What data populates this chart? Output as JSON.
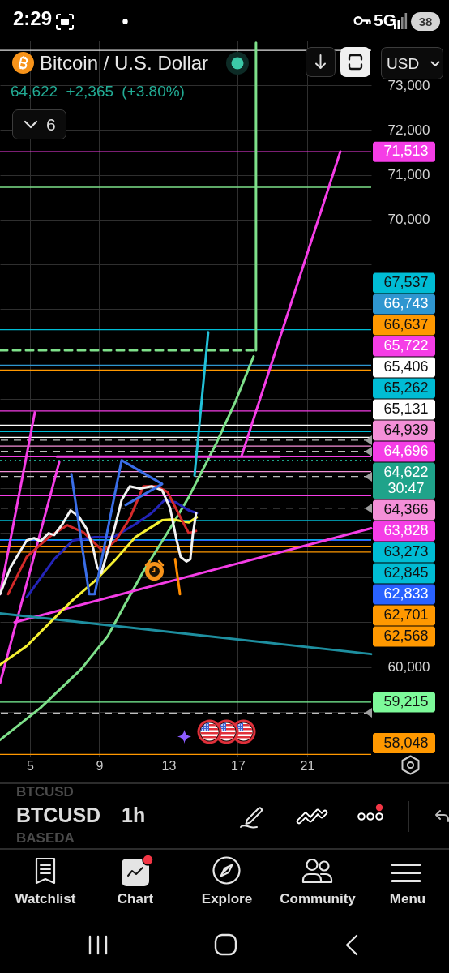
{
  "chart_data": {
    "type": "line",
    "title": "Bitcoin / U.S. Dollar",
    "subtitle": "64,622 +2,365 (+3.80%)",
    "xlim": [
      3.27,
      24.7
    ],
    "xticks": [
      5,
      9,
      13,
      17,
      21
    ],
    "ylim": [
      58000,
      74000
    ],
    "yticks": [
      {
        "value": 58000,
        "label": null
      },
      {
        "value": 59000,
        "label": null
      },
      {
        "value": 60000,
        "label": "60,000"
      },
      {
        "value": 61000,
        "label": null
      },
      {
        "value": 62000,
        "label": null
      },
      {
        "value": 63000,
        "label": null
      },
      {
        "value": 64000,
        "label": null
      },
      {
        "value": 65000,
        "label": null
      },
      {
        "value": 66000,
        "label": null
      },
      {
        "value": 67000,
        "label": null
      },
      {
        "value": 68000,
        "label": null
      },
      {
        "value": 69000,
        "label": null
      },
      {
        "value": 70000,
        "label": "70,000"
      },
      {
        "value": 71000,
        "label": "71,000"
      },
      {
        "value": 72000,
        "label": "72,000"
      },
      {
        "value": 73000,
        "label": "73,000"
      },
      {
        "value": 74000,
        "label": null
      }
    ],
    "grid": true,
    "legend": "right",
    "series": [
      {
        "color": "#7ee08a",
        "x": [
          3.27,
          5.61,
          7.95,
          9.49,
          10.43,
          11.55,
          13.24,
          14.17,
          15.76,
          16.84,
          17.91
        ],
        "values": [
          58370,
          59090,
          59950,
          60690,
          61360,
          62140,
          63190,
          63800,
          65000,
          65910,
          66940
        ]
      },
      {
        "color": "#7ee08a",
        "x": [
          18.05,
          18.05
        ],
        "values": [
          67080,
          73950
        ]
      },
      {
        "color": "#7ee08a",
        "line_style": "dashed",
        "x": [
          3.27,
          18.15
        ],
        "values": [
          67080,
          67080
        ]
      },
      {
        "color": "#f53de6",
        "x": [
          6.55,
          19.41
        ],
        "values": [
          64700,
          64700
        ]
      },
      {
        "color": "#f53de6",
        "x": [
          17.21,
          22.92
        ],
        "values": [
          64710,
          71520
        ]
      },
      {
        "color": "#f53de6",
        "x": [
          4.11,
          24.7
        ],
        "values": [
          61000,
          63100
        ]
      },
      {
        "color": "#f53de6",
        "x": [
          3.27,
          5.28
        ],
        "values": [
          61630,
          65690
        ]
      },
      {
        "color": "#f53de6",
        "x": [
          3.27,
          6.69
        ],
        "values": [
          59640,
          64580
        ]
      },
      {
        "color": "#1e8fa0",
        "x": [
          3.27,
          24.7
        ],
        "values": [
          61200,
          60290
        ]
      },
      {
        "color": "#22c0d8",
        "x": [
          14.5,
          15.29
        ],
        "values": [
          64280,
          67480
        ]
      },
      {
        "color": "#f5f032",
        "x": [
          3.27,
          4.81,
          6.87,
          7.48,
          8.74,
          9.96,
          11.08,
          12.02,
          12.63,
          13.24,
          14.17,
          14.64
        ],
        "values": [
          60050,
          60470,
          61270,
          61500,
          61920,
          62410,
          62900,
          63130,
          63280,
          63300,
          63230,
          63350
        ]
      },
      {
        "color": "#2424b8",
        "x": [
          4.81,
          6.4,
          7.48,
          8.74,
          9.82,
          11.08,
          12.02,
          12.77,
          13.42,
          14.17,
          14.64
        ],
        "values": [
          61560,
          62410,
          62830,
          62900,
          62900,
          63190,
          63440,
          63730,
          63680,
          63500,
          63440
        ]
      },
      {
        "color": "#d42a2a",
        "x": [
          3.74,
          4.81,
          6.08,
          7.15,
          8.09,
          9.21,
          9.96,
          10.76,
          11.55,
          12.3,
          12.95,
          13.56,
          14.17,
          14.59
        ],
        "values": [
          61630,
          62460,
          62900,
          63170,
          63010,
          62590,
          62830,
          63320,
          64040,
          64040,
          63910,
          63440,
          62990,
          63040
        ]
      },
      {
        "color": "#f2f2f2",
        "x": [
          3.27,
          3.88,
          4.81,
          5.24,
          5.61,
          6.08,
          6.4,
          6.87,
          7.34,
          7.81,
          8.28,
          8.65,
          8.88,
          9.12,
          9.45,
          9.82,
          10.29,
          10.76,
          11.36,
          12.02,
          12.63,
          13.09,
          13.47,
          13.7,
          14.03,
          14.26,
          14.4,
          14.59
        ],
        "values": [
          61630,
          62230,
          62830,
          62880,
          62810,
          62990,
          62950,
          63190,
          63500,
          63370,
          63080,
          62650,
          62230,
          62100,
          62540,
          63010,
          63730,
          64040,
          63990,
          64040,
          63950,
          63550,
          62830,
          62460,
          62360,
          62410,
          62950,
          63440
        ]
      },
      {
        "color": "#3a6ee8",
        "x": [
          7.39,
          8.42,
          8.74,
          10.29,
          12.63,
          10.52
        ],
        "values": [
          64310,
          61630,
          61630,
          64620,
          64090,
          63620
        ]
      },
      {
        "color": "#ff8c00",
        "x": [
          13.38,
          13.66
        ],
        "values": [
          62410,
          61630
        ]
      }
    ],
    "ref_lines": [
      {
        "axis": "y",
        "value": 73780,
        "color": "#e0e0e0"
      },
      {
        "axis": "y",
        "value": 71513,
        "label": "71,513",
        "color": "#f53de6"
      },
      {
        "axis": "y",
        "value": 70720,
        "color": "#7ee08a"
      },
      {
        "axis": "y",
        "value": 67537,
        "label": "67,537",
        "color": "#00bcd4"
      },
      {
        "axis": "y",
        "value": 66743,
        "label": "66,743",
        "color": "#2f96d0"
      },
      {
        "axis": "y",
        "value": 66637,
        "label": "66,637",
        "color": "#ff9800"
      },
      {
        "axis": "y",
        "value": 65722,
        "label": "65,722",
        "color": "#f53de6"
      },
      {
        "axis": "y",
        "value": 65406,
        "label": "65,406",
        "color": "#ffffff"
      },
      {
        "axis": "y",
        "value": 65262,
        "label": "65,262",
        "color": "#00bcd4"
      },
      {
        "axis": "y",
        "value": 65131,
        "label": "65,131",
        "color": "#ffffff"
      },
      {
        "axis": "y",
        "value": 65070,
        "color": "#bdbdbd",
        "line_style": "dashed"
      },
      {
        "axis": "y",
        "value": 64939,
        "label": "64,939",
        "color": "#f48fd8"
      },
      {
        "axis": "y",
        "value": 64820,
        "color": "#bdbdbd",
        "line_style": "dashed"
      },
      {
        "axis": "y",
        "value": 64696,
        "label": "64,696",
        "color": "#f53de6"
      },
      {
        "axis": "y",
        "value": 64622,
        "label": "64,622",
        "color": "#1fa38a",
        "line_style": "dotted"
      },
      {
        "axis": "y",
        "value": 64366,
        "label": "64,366",
        "color": "#f48fd8"
      },
      {
        "axis": "y",
        "value": 64260,
        "color": "#bdbdbd",
        "line_style": "dashed"
      },
      {
        "axis": "y",
        "value": 63828,
        "label": "63,828",
        "color": "#f53de6"
      },
      {
        "axis": "y",
        "value": 63550,
        "color": "#bdbdbd",
        "line_style": "dashed"
      },
      {
        "axis": "y",
        "value": 63273,
        "label": "63,273",
        "color": "#00bcd4"
      },
      {
        "axis": "y",
        "value": 62845,
        "label": "62,845",
        "color": "#00bcd4"
      },
      {
        "axis": "y",
        "value": 62833,
        "label": "62,833",
        "color": "#2962ff"
      },
      {
        "axis": "y",
        "value": 62701,
        "label": "62,701",
        "color": "#ff9800"
      },
      {
        "axis": "y",
        "value": 62568,
        "label": "62,568",
        "color": "#ff9800"
      },
      {
        "axis": "y",
        "value": 59215,
        "label": "59,215",
        "color": "#7dfa9a"
      },
      {
        "axis": "y",
        "value": 58970,
        "color": "#bdbdbd",
        "line_style": "dashed"
      },
      {
        "axis": "y",
        "value": 58048,
        "label": "58,048",
        "color": "#ff9800"
      }
    ],
    "annotations": [
      "2:29",
      "5G",
      "38",
      "6",
      "USD",
      "BTCUSD",
      "BTCUSD",
      "1h",
      "BASEDA",
      "Watchlist",
      "Chart",
      "Explore",
      "Community",
      "Menu",
      "30:47"
    ]
  }
}
